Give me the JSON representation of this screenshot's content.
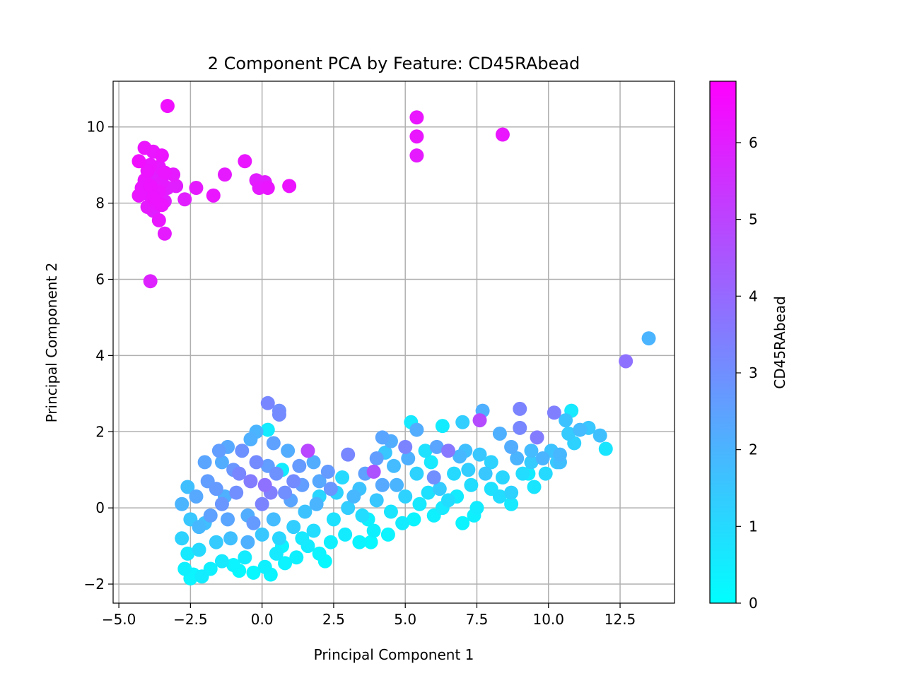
{
  "chart_data": {
    "type": "scatter",
    "title": "2 Component PCA by Feature: CD45RAbead",
    "xlabel": "Principal Component 1",
    "ylabel": "Principal Component 2",
    "xlim": [
      -5.2,
      14.4
    ],
    "ylim": [
      -2.5,
      11.2
    ],
    "xticks": [
      -5.0,
      -2.5,
      0.0,
      2.5,
      5.0,
      7.5,
      10.0,
      12.5
    ],
    "xtick_labels": [
      "−5.0",
      "−2.5",
      "0.0",
      "2.5",
      "5.0",
      "7.5",
      "10.0",
      "12.5"
    ],
    "yticks": [
      -2,
      0,
      2,
      4,
      6,
      8,
      10
    ],
    "ytick_labels": [
      "−2",
      "0",
      "2",
      "4",
      "6",
      "8",
      "10"
    ],
    "grid": true,
    "colorbar": {
      "label": "CD45RAbead",
      "colormap": "cool",
      "color_low": "#00ffff",
      "color_high": "#ff00ff",
      "min": 0,
      "max": 6.8,
      "ticks": [
        0,
        1,
        2,
        3,
        4,
        5,
        6
      ],
      "tick_labels": [
        "0",
        "1",
        "2",
        "3",
        "4",
        "5",
        "6"
      ]
    },
    "points": [
      {
        "x": -3.3,
        "y": 10.55,
        "c": 6.4
      },
      {
        "x": 5.4,
        "y": 10.25,
        "c": 6.2
      },
      {
        "x": 5.4,
        "y": 9.75,
        "c": 6.2
      },
      {
        "x": 5.4,
        "y": 9.25,
        "c": 6.1
      },
      {
        "x": 8.4,
        "y": 9.8,
        "c": 6.2
      },
      {
        "x": -4.1,
        "y": 9.45,
        "c": 6.3
      },
      {
        "x": -3.8,
        "y": 9.35,
        "c": 6.2
      },
      {
        "x": -3.5,
        "y": 9.25,
        "c": 6.3
      },
      {
        "x": -4.3,
        "y": 9.1,
        "c": 6.4
      },
      {
        "x": -3.9,
        "y": 9.0,
        "c": 6.2
      },
      {
        "x": -3.6,
        "y": 8.95,
        "c": 6.1
      },
      {
        "x": -4.0,
        "y": 8.85,
        "c": 6.3
      },
      {
        "x": -3.4,
        "y": 8.8,
        "c": 6.2
      },
      {
        "x": -3.7,
        "y": 8.7,
        "c": 6.0
      },
      {
        "x": -4.1,
        "y": 8.6,
        "c": 6.2
      },
      {
        "x": -3.5,
        "y": 8.55,
        "c": 6.1
      },
      {
        "x": -3.9,
        "y": 8.45,
        "c": 6.3
      },
      {
        "x": -4.2,
        "y": 8.4,
        "c": 6.2
      },
      {
        "x": -3.3,
        "y": 8.4,
        "c": 6.0
      },
      {
        "x": -3.6,
        "y": 8.3,
        "c": 6.2
      },
      {
        "x": -4.0,
        "y": 8.25,
        "c": 6.1
      },
      {
        "x": -3.8,
        "y": 8.15,
        "c": 6.3
      },
      {
        "x": -4.3,
        "y": 8.2,
        "c": 6.2
      },
      {
        "x": -3.4,
        "y": 8.05,
        "c": 6.0
      },
      {
        "x": -3.7,
        "y": 8.0,
        "c": 6.2
      },
      {
        "x": -4.0,
        "y": 7.9,
        "c": 6.1
      },
      {
        "x": -3.5,
        "y": 7.95,
        "c": 6.3
      },
      {
        "x": -3.8,
        "y": 7.8,
        "c": 6.0
      },
      {
        "x": -3.6,
        "y": 7.55,
        "c": 6.2
      },
      {
        "x": -3.4,
        "y": 7.2,
        "c": 6.1
      },
      {
        "x": -3.9,
        "y": 5.95,
        "c": 5.9
      },
      {
        "x": -3.1,
        "y": 8.75,
        "c": 6.1
      },
      {
        "x": -3.0,
        "y": 8.45,
        "c": 6.0
      },
      {
        "x": -2.7,
        "y": 8.1,
        "c": 6.0
      },
      {
        "x": -2.3,
        "y": 8.4,
        "c": 6.1
      },
      {
        "x": -1.7,
        "y": 8.2,
        "c": 6.2
      },
      {
        "x": -1.3,
        "y": 8.75,
        "c": 6.1
      },
      {
        "x": -0.6,
        "y": 9.1,
        "c": 6.2
      },
      {
        "x": -0.2,
        "y": 8.6,
        "c": 6.0
      },
      {
        "x": -0.1,
        "y": 8.4,
        "c": 6.1
      },
      {
        "x": 0.2,
        "y": 8.4,
        "c": 6.2
      },
      {
        "x": 0.1,
        "y": 8.55,
        "c": 6.0
      },
      {
        "x": 0.95,
        "y": 8.45,
        "c": 6.3
      },
      {
        "x": 13.5,
        "y": 4.45,
        "c": 2.0
      },
      {
        "x": 12.7,
        "y": 3.85,
        "c": 3.8
      },
      {
        "x": 0.2,
        "y": 2.75,
        "c": 3.2
      },
      {
        "x": 0.6,
        "y": 2.55,
        "c": 3.0
      },
      {
        "x": 0.6,
        "y": 2.45,
        "c": 3.1
      },
      {
        "x": 0.2,
        "y": 2.05,
        "c": 0.5
      },
      {
        "x": -0.2,
        "y": 2.0,
        "c": 2.0
      },
      {
        "x": 5.2,
        "y": 2.25,
        "c": 0.6
      },
      {
        "x": 5.4,
        "y": 2.05,
        "c": 2.2
      },
      {
        "x": 6.3,
        "y": 2.15,
        "c": 0.5
      },
      {
        "x": 7.0,
        "y": 2.25,
        "c": 1.3
      },
      {
        "x": 7.6,
        "y": 2.3,
        "c": 4.8
      },
      {
        "x": 7.7,
        "y": 2.55,
        "c": 2.1
      },
      {
        "x": 9.0,
        "y": 2.6,
        "c": 3.3
      },
      {
        "x": 10.2,
        "y": 2.5,
        "c": 3.4
      },
      {
        "x": 10.8,
        "y": 2.55,
        "c": 0.6
      },
      {
        "x": 10.6,
        "y": 2.3,
        "c": 1.6
      },
      {
        "x": 10.7,
        "y": 1.95,
        "c": 1.4
      },
      {
        "x": 11.1,
        "y": 2.05,
        "c": 1.8
      },
      {
        "x": 11.4,
        "y": 2.1,
        "c": 1.5
      },
      {
        "x": 11.8,
        "y": 1.9,
        "c": 1.7
      },
      {
        "x": 12.0,
        "y": 1.55,
        "c": 0.7
      },
      {
        "x": 10.9,
        "y": 1.7,
        "c": 1.2
      },
      {
        "x": 9.0,
        "y": 2.1,
        "c": 3.2
      },
      {
        "x": 9.6,
        "y": 1.85,
        "c": 3.5
      },
      {
        "x": 8.3,
        "y": 1.95,
        "c": 2.1
      },
      {
        "x": 9.4,
        "y": 1.5,
        "c": 1.8
      },
      {
        "x": 9.8,
        "y": 1.3,
        "c": 2.0
      },
      {
        "x": 10.1,
        "y": 1.5,
        "c": 1.6
      },
      {
        "x": 10.3,
        "y": 1.2,
        "c": 1.4
      },
      {
        "x": 9.9,
        "y": 0.9,
        "c": 1.0
      },
      {
        "x": 8.7,
        "y": 1.6,
        "c": 2.2
      },
      {
        "x": 8.0,
        "y": 1.2,
        "c": 1.2
      },
      {
        "x": 7.6,
        "y": 1.4,
        "c": 1.5
      },
      {
        "x": 7.2,
        "y": 1.0,
        "c": 1.3
      },
      {
        "x": 6.9,
        "y": 1.35,
        "c": 1.9
      },
      {
        "x": 6.5,
        "y": 1.5,
        "c": 3.6
      },
      {
        "x": 6.1,
        "y": 1.6,
        "c": 2.4
      },
      {
        "x": 5.7,
        "y": 1.5,
        "c": 0.8
      },
      {
        "x": 5.0,
        "y": 1.6,
        "c": 3.3
      },
      {
        "x": 4.2,
        "y": 1.85,
        "c": 2.4
      },
      {
        "x": 4.5,
        "y": 1.75,
        "c": 2.2
      },
      {
        "x": 4.3,
        "y": 1.45,
        "c": 1.5
      },
      {
        "x": 3.6,
        "y": 0.9,
        "c": 2.5
      },
      {
        "x": 3.0,
        "y": 1.4,
        "c": 3.2
      },
      {
        "x": 2.3,
        "y": 0.95,
        "c": 2.7
      },
      {
        "x": 1.6,
        "y": 1.5,
        "c": 4.9
      },
      {
        "x": 0.9,
        "y": 1.5,
        "c": 2.2
      },
      {
        "x": 0.4,
        "y": 1.7,
        "c": 2.5
      },
      {
        "x": -0.7,
        "y": 1.5,
        "c": 2.9
      },
      {
        "x": -1.5,
        "y": 1.5,
        "c": 2.6
      },
      {
        "x": -1.2,
        "y": 1.6,
        "c": 2.3
      },
      {
        "x": -2.0,
        "y": 1.2,
        "c": 2.4
      },
      {
        "x": -0.4,
        "y": 1.8,
        "c": 2.1
      },
      {
        "x": 3.9,
        "y": 0.95,
        "c": 4.6
      },
      {
        "x": 0.7,
        "y": 1.0,
        "c": 0.5
      },
      {
        "x": -1.3,
        "y": 0.3,
        "c": 2.1
      },
      {
        "x": -0.4,
        "y": 0.7,
        "c": 3.5
      },
      {
        "x": 0.8,
        "y": 0.4,
        "c": 3.0
      },
      {
        "x": 1.4,
        "y": 0.6,
        "c": 2.6
      },
      {
        "x": 2.6,
        "y": 0.4,
        "c": 1.2
      },
      {
        "x": 3.4,
        "y": 0.5,
        "c": 1.6
      },
      {
        "x": 4.7,
        "y": 0.6,
        "c": 2.0
      },
      {
        "x": 6.2,
        "y": 0.5,
        "c": 1.4
      },
      {
        "x": 7.3,
        "y": 0.6,
        "c": 0.9
      },
      {
        "x": 8.7,
        "y": 0.4,
        "c": 1.2
      },
      {
        "x": 9.5,
        "y": 0.55,
        "c": 0.7
      },
      {
        "x": 8.7,
        "y": 0.1,
        "c": 0.6
      },
      {
        "x": -2.6,
        "y": 0.55,
        "c": 1.7
      },
      {
        "x": -2.8,
        "y": 0.1,
        "c": 2.0
      },
      {
        "x": -2.3,
        "y": 0.3,
        "c": 2.3
      },
      {
        "x": -2.5,
        "y": -0.3,
        "c": 1.5
      },
      {
        "x": -2.8,
        "y": -0.8,
        "c": 1.2
      },
      {
        "x": -2.2,
        "y": -0.5,
        "c": 1.9
      },
      {
        "x": -1.8,
        "y": -0.2,
        "c": 2.5
      },
      {
        "x": -1.4,
        "y": 0.1,
        "c": 2.8
      },
      {
        "x": -0.9,
        "y": 0.4,
        "c": 3.0
      },
      {
        "x": -0.5,
        "y": -0.2,
        "c": 2.2
      },
      {
        "x": 0.0,
        "y": 0.1,
        "c": 3.3
      },
      {
        "x": 0.4,
        "y": -0.3,
        "c": 1.8
      },
      {
        "x": 1.0,
        "y": 0.2,
        "c": 2.4
      },
      {
        "x": 1.5,
        "y": -0.1,
        "c": 1.6
      },
      {
        "x": 2.0,
        "y": 0.3,
        "c": 1.1
      },
      {
        "x": 2.5,
        "y": -0.3,
        "c": 0.8
      },
      {
        "x": 3.0,
        "y": 0.0,
        "c": 1.3
      },
      {
        "x": 3.5,
        "y": -0.2,
        "c": 0.9
      },
      {
        "x": 4.0,
        "y": 0.2,
        "c": 1.5
      },
      {
        "x": 4.5,
        "y": -0.1,
        "c": 0.7
      },
      {
        "x": 5.0,
        "y": 0.3,
        "c": 1.2
      },
      {
        "x": 5.5,
        "y": 0.1,
        "c": 0.6
      },
      {
        "x": 6.0,
        "y": -0.2,
        "c": 0.4
      },
      {
        "x": 6.5,
        "y": 0.2,
        "c": 0.9
      },
      {
        "x": 7.0,
        "y": -0.4,
        "c": 0.3
      },
      {
        "x": 7.5,
        "y": 0.0,
        "c": 0.5
      },
      {
        "x": 8.0,
        "y": 0.5,
        "c": 0.8
      },
      {
        "x": -2.6,
        "y": -1.2,
        "c": 0.6
      },
      {
        "x": -2.7,
        "y": -1.6,
        "c": 0.4
      },
      {
        "x": -2.4,
        "y": -1.75,
        "c": 0.3
      },
      {
        "x": -2.1,
        "y": -1.8,
        "c": 0.5
      },
      {
        "x": -1.8,
        "y": -1.6,
        "c": 0.4
      },
      {
        "x": -1.4,
        "y": -1.4,
        "c": 0.6
      },
      {
        "x": -1.0,
        "y": -1.5,
        "c": 0.3
      },
      {
        "x": -0.6,
        "y": -1.3,
        "c": 0.5
      },
      {
        "x": -0.3,
        "y": -1.7,
        "c": 0.2
      },
      {
        "x": 0.1,
        "y": -1.55,
        "c": 0.4
      },
      {
        "x": 0.5,
        "y": -1.2,
        "c": 0.6
      },
      {
        "x": 0.8,
        "y": -1.45,
        "c": 0.3
      },
      {
        "x": 1.2,
        "y": -1.3,
        "c": 0.4
      },
      {
        "x": 1.6,
        "y": -1.0,
        "c": 0.5
      },
      {
        "x": 2.0,
        "y": -1.2,
        "c": 0.3
      },
      {
        "x": 2.4,
        "y": -0.9,
        "c": 0.4
      },
      {
        "x": 2.9,
        "y": -0.7,
        "c": 0.5
      },
      {
        "x": 3.4,
        "y": -0.9,
        "c": 0.3
      },
      {
        "x": 3.9,
        "y": -0.6,
        "c": 0.4
      },
      {
        "x": 4.4,
        "y": -0.7,
        "c": 0.3
      },
      {
        "x": 4.9,
        "y": -0.4,
        "c": 0.5
      },
      {
        "x": -2.2,
        "y": -1.1,
        "c": 1.0
      },
      {
        "x": -1.6,
        "y": -0.9,
        "c": 1.4
      },
      {
        "x": -1.1,
        "y": -0.8,
        "c": 1.7
      },
      {
        "x": -0.5,
        "y": -0.9,
        "c": 2.1
      },
      {
        "x": 0.0,
        "y": -0.7,
        "c": 1.5
      },
      {
        "x": 0.6,
        "y": -0.8,
        "c": 1.1
      },
      {
        "x": 1.1,
        "y": -0.5,
        "c": 1.3
      },
      {
        "x": 1.8,
        "y": -0.6,
        "c": 0.9
      },
      {
        "x": -1.9,
        "y": 0.7,
        "c": 2.6
      },
      {
        "x": -1.0,
        "y": 1.0,
        "c": 2.8
      },
      {
        "x": -0.2,
        "y": 1.2,
        "c": 3.1
      },
      {
        "x": 0.5,
        "y": 0.9,
        "c": 2.9
      },
      {
        "x": 1.3,
        "y": 1.1,
        "c": 2.7
      },
      {
        "x": 2.0,
        "y": 0.7,
        "c": 2.3
      },
      {
        "x": 2.8,
        "y": 0.8,
        "c": 1.0
      },
      {
        "x": 4.6,
        "y": 1.1,
        "c": 1.8
      },
      {
        "x": 5.4,
        "y": 0.9,
        "c": 1.2
      },
      {
        "x": 5.9,
        "y": 1.2,
        "c": 0.6
      },
      {
        "x": 6.7,
        "y": 0.9,
        "c": 1.0
      },
      {
        "x": 7.8,
        "y": 0.9,
        "c": 1.5
      },
      {
        "x": 8.4,
        "y": 0.8,
        "c": 1.1
      },
      {
        "x": 9.1,
        "y": 0.9,
        "c": 0.9
      },
      {
        "x": 9.4,
        "y": 1.2,
        "c": 1.4
      },
      {
        "x": -2.0,
        "y": -0.4,
        "c": 1.7
      },
      {
        "x": -1.2,
        "y": -0.3,
        "c": 2.4
      },
      {
        "x": -0.3,
        "y": -0.4,
        "c": 2.7
      },
      {
        "x": 0.3,
        "y": 0.4,
        "c": 3.4
      },
      {
        "x": 1.9,
        "y": 0.1,
        "c": 2.0
      },
      {
        "x": 3.2,
        "y": 0.3,
        "c": 1.9
      },
      {
        "x": 4.2,
        "y": 0.6,
        "c": 2.3
      },
      {
        "x": 5.8,
        "y": 0.4,
        "c": 0.8
      },
      {
        "x": 6.8,
        "y": 0.3,
        "c": 0.5
      },
      {
        "x": 0.7,
        "y": -1.0,
        "c": 0.3
      },
      {
        "x": 1.4,
        "y": -0.8,
        "c": 0.6
      },
      {
        "x": 3.7,
        "y": -0.3,
        "c": 0.4
      },
      {
        "x": 5.3,
        "y": -0.3,
        "c": 0.3
      },
      {
        "x": 6.3,
        "y": 0.0,
        "c": 0.6
      },
      {
        "x": 7.4,
        "y": -0.2,
        "c": 0.4
      },
      {
        "x": -1.4,
        "y": 1.2,
        "c": 2.2
      },
      {
        "x": 0.1,
        "y": 0.6,
        "c": 3.8
      },
      {
        "x": 1.1,
        "y": 0.7,
        "c": 3.1
      },
      {
        "x": 2.4,
        "y": 0.5,
        "c": 2.8
      },
      {
        "x": 4.0,
        "y": 1.3,
        "c": 2.6
      },
      {
        "x": 6.0,
        "y": 0.8,
        "c": 3.0
      },
      {
        "x": 8.9,
        "y": 1.3,
        "c": 2.0
      },
      {
        "x": 10.4,
        "y": 1.4,
        "c": 1.9
      },
      {
        "x": 10.4,
        "y": 1.2,
        "c": 1.7
      },
      {
        "x": 3.8,
        "y": -0.9,
        "c": 0.2
      },
      {
        "x": 2.2,
        "y": -1.4,
        "c": 0.2
      },
      {
        "x": 0.3,
        "y": -1.75,
        "c": 0.3
      },
      {
        "x": -0.8,
        "y": -1.65,
        "c": 0.2
      },
      {
        "x": -2.5,
        "y": -1.85,
        "c": 0.3
      },
      {
        "x": -1.6,
        "y": 0.5,
        "c": 2.7
      },
      {
        "x": -0.8,
        "y": 0.9,
        "c": 3.2
      },
      {
        "x": 0.2,
        "y": 1.1,
        "c": 2.6
      },
      {
        "x": 1.8,
        "y": 1.2,
        "c": 2.2
      },
      {
        "x": 5.1,
        "y": 1.3,
        "c": 2.1
      },
      {
        "x": 7.1,
        "y": 1.5,
        "c": 1.7
      },
      {
        "x": 8.3,
        "y": 0.3,
        "c": 0.9
      },
      {
        "x": 9.3,
        "y": 0.9,
        "c": 0.5
      }
    ]
  }
}
